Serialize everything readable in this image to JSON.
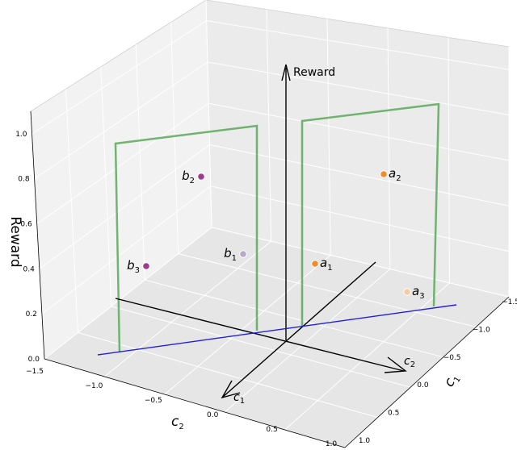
{
  "chart_data": {
    "type": "scatter",
    "projection": "3d",
    "title": "",
    "axes": {
      "c1": {
        "label": "c",
        "label_sub": "1",
        "range": [
          -1.5,
          1.0
        ],
        "ticks": [
          "−1.5",
          "−1.0",
          "−0.5",
          "0.0",
          "0.5",
          "1.0"
        ]
      },
      "c2": {
        "label": "c",
        "label_sub": "2",
        "range": [
          -1.5,
          1.0
        ],
        "ticks": [
          "−1.5",
          "−1.0",
          "−0.5",
          "0.0",
          "0.5",
          "1.0"
        ]
      },
      "reward": {
        "label": "Reward",
        "range": [
          0.0,
          1.0
        ],
        "ticks": [
          "0.0",
          "0.2",
          "0.4",
          "0.6",
          "0.8",
          "1.0"
        ]
      }
    },
    "grid": true,
    "points": [
      {
        "name": "b",
        "sub": "2",
        "c1": -0.5,
        "c2": -1.2,
        "reward": 0.9,
        "color": "#9b3c8c",
        "label_side": "left"
      },
      {
        "name": "b",
        "sub": "3",
        "c1": 0.3,
        "c2": -1.3,
        "reward": 0.48,
        "color": "#9b3c8c",
        "label_side": "left"
      },
      {
        "name": "b",
        "sub": "1",
        "c1": -0.2,
        "c2": -0.6,
        "reward": 0.4,
        "color": "#b8a9c9",
        "label_side": "left"
      },
      {
        "name": "a",
        "sub": "1",
        "c1": 0.05,
        "c2": -0.3,
        "reward": 0.3,
        "color": "#f28c28",
        "label_side": "right"
      },
      {
        "name": "a",
        "sub": "2",
        "c1": -1.25,
        "c2": 0.05,
        "reward": 0.72,
        "color": "#f28c28",
        "label_side": "right"
      },
      {
        "name": "a",
        "sub": "3",
        "c1": -0.55,
        "c2": 0.45,
        "reward": 0.06,
        "color": "#f8c9a4",
        "label_side": "right"
      }
    ],
    "overlay": {
      "reward_arrow_label": "Reward",
      "c1_arrow_label": "c",
      "c1_arrow_sub": "1",
      "c2_arrow_label": "c",
      "c2_arrow_sub": "2",
      "line_color_blue": "#1f1fdc",
      "line_color_green": "#5aa85a"
    }
  }
}
